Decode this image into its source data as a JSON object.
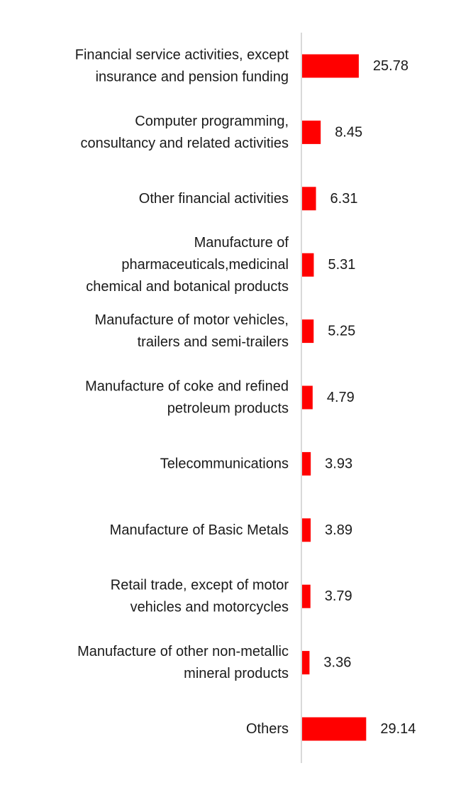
{
  "chart_data": {
    "type": "bar",
    "orientation": "horizontal",
    "categories": [
      [
        "Financial service activities, except",
        "insurance and pension funding"
      ],
      [
        "Computer programming,",
        "consultancy and related activities"
      ],
      [
        "Other financial activities"
      ],
      [
        "Manufacture of",
        "pharmaceuticals,medicinal",
        "chemical and botanical products"
      ],
      [
        "Manufacture of motor vehicles,",
        "trailers and semi-trailers"
      ],
      [
        "Manufacture of coke and refined",
        "petroleum products"
      ],
      [
        "Telecommunications"
      ],
      [
        "Manufacture of Basic Metals"
      ],
      [
        "Retail trade, except of motor",
        "vehicles and motorcycles"
      ],
      [
        "Manufacture of other non-metallic",
        "mineral products"
      ],
      [
        "Others"
      ]
    ],
    "values": [
      25.78,
      8.45,
      6.31,
      5.31,
      5.25,
      4.79,
      3.93,
      3.89,
      3.79,
      3.36,
      29.14
    ],
    "value_labels": [
      "25.78",
      "8.45",
      "6.31",
      "5.31",
      "5.25",
      "4.79",
      "3.93",
      "3.89",
      "3.79",
      "3.36",
      "29.14"
    ],
    "bar_color": "#ff0000",
    "axis_color": "#d9d9d9",
    "grid": false,
    "legend": "none"
  }
}
